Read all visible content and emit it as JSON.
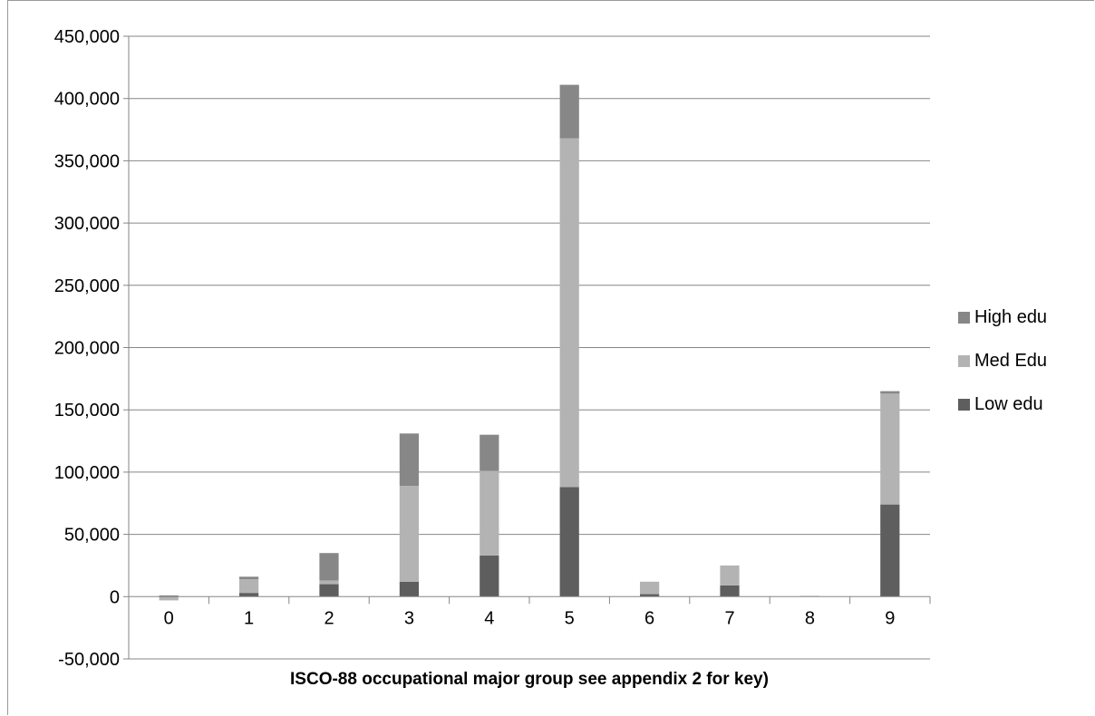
{
  "chart_data": {
    "type": "bar",
    "stacked": true,
    "title": "",
    "xlabel": "ISCO-88 occupational major group see appendix 2 for key)",
    "ylabel": "",
    "categories": [
      "0",
      "1",
      "2",
      "3",
      "4",
      "5",
      "6",
      "7",
      "8",
      "9"
    ],
    "series": [
      {
        "name": "Low edu",
        "color": "#5e5e5e",
        "values": [
          0,
          3000,
          10000,
          12000,
          33000,
          88000,
          2000,
          9000,
          0,
          74000
        ]
      },
      {
        "name": "Med Edu",
        "color": "#b3b3b3",
        "values": [
          -3000,
          11000,
          3000,
          77000,
          68000,
          280000,
          10000,
          16000,
          0,
          89000
        ]
      },
      {
        "name": "High edu",
        "color": "#878787",
        "values": [
          1000,
          2000,
          22000,
          42000,
          29000,
          43000,
          0,
          0,
          500,
          2000
        ]
      }
    ],
    "ylim": [
      -50000,
      450000
    ],
    "y_ticks": [
      {
        "value": -50000,
        "label": "-50,000",
        "color": "#ff0000"
      },
      {
        "value": 0,
        "label": "0",
        "color": "#000000"
      },
      {
        "value": 50000,
        "label": "50,000",
        "color": "#000000"
      },
      {
        "value": 100000,
        "label": "100,000",
        "color": "#000000"
      },
      {
        "value": 150000,
        "label": "150,000",
        "color": "#000000"
      },
      {
        "value": 200000,
        "label": "200,000",
        "color": "#000000"
      },
      {
        "value": 250000,
        "label": "250,000",
        "color": "#000000"
      },
      {
        "value": 300000,
        "label": "300,000",
        "color": "#000000"
      },
      {
        "value": 350000,
        "label": "350,000",
        "color": "#000000"
      },
      {
        "value": 400000,
        "label": "400,000",
        "color": "#000000"
      },
      {
        "value": 450000,
        "label": "450,000",
        "color": "#000000"
      }
    ],
    "grid": true,
    "legend_position": "right",
    "legend_order": [
      "High edu",
      "Med Edu",
      "Low edu"
    ]
  }
}
